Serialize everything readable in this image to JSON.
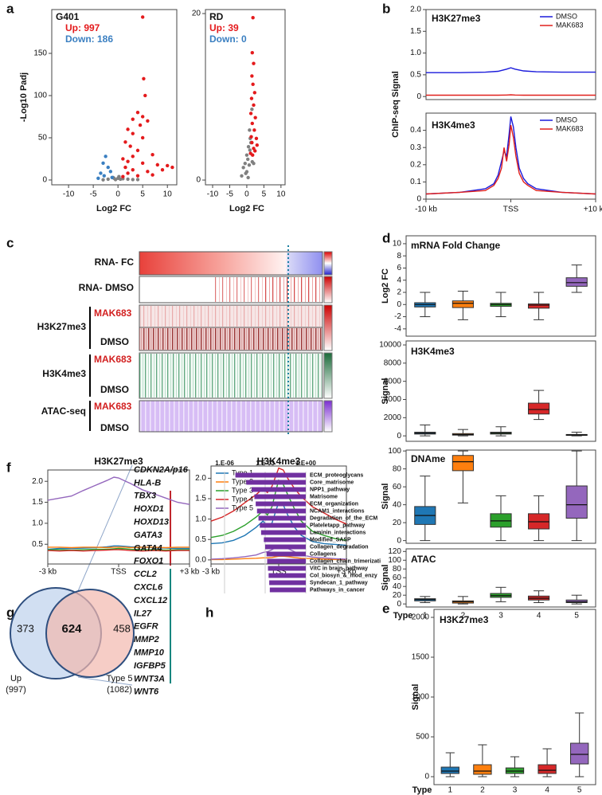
{
  "panel_labels": [
    "a",
    "b",
    "c",
    "d",
    "e",
    "f",
    "g",
    "h"
  ],
  "heatmap": {
    "rows": [
      "RNA- FC",
      "RNA- DMSO"
    ],
    "tracks": [
      {
        "name": "H3K27me3",
        "conditions": [
          "MAK683",
          "DMSO"
        ]
      },
      {
        "name": "H3K4me3",
        "conditions": [
          "MAK683",
          "DMSO"
        ]
      },
      {
        "name": "ATAC-seq",
        "conditions": [
          "MAK683",
          "DMSO"
        ]
      }
    ]
  },
  "chart_data": [
    {
      "type": "scatter",
      "title": "G401",
      "xlabel": "Log2 FC",
      "ylabel": "-Log10 Padj",
      "annotations": [
        {
          "text": "Up: 997",
          "color": "#e41a1c"
        },
        {
          "text": "Down: 186",
          "color": "#3a7fc1"
        }
      ],
      "xlim": [
        -13.4,
        11.9
      ],
      "ylim": [
        -5.7,
        201.9
      ],
      "xticks": [
        -10,
        -5,
        0,
        5,
        10
      ],
      "yticks": [
        0,
        50,
        100,
        150
      ],
      "series": [
        {
          "color": "#808080",
          "x": [
            -1,
            0,
            0.5,
            -0.5,
            1,
            2,
            -2,
            3,
            -3,
            0.2,
            -0.8,
            4
          ],
          "values": [
            3,
            2,
            1,
            0.5,
            1.5,
            1,
            1,
            0.5,
            0.3,
            4,
            2,
            0.5
          ]
        },
        {
          "color": "#3a7fc1",
          "x": [
            -2.5,
            -3,
            -2,
            -1.5,
            -3.5,
            -2.8,
            -1.2,
            -4
          ],
          "values": [
            28,
            20,
            15,
            10,
            8,
            5,
            3,
            2
          ]
        },
        {
          "color": "#e41a1c",
          "x": [
            5,
            5.2,
            5.5,
            4,
            5,
            3,
            6,
            4.5,
            2,
            3,
            5,
            1.5,
            2.5,
            4,
            7,
            3,
            1,
            2,
            5,
            8,
            10,
            1.5,
            3,
            6,
            2,
            9,
            11,
            4,
            1,
            7
          ],
          "values": [
            193,
            120,
            100,
            80,
            75,
            72,
            70,
            65,
            60,
            55,
            50,
            45,
            40,
            35,
            30,
            28,
            25,
            22,
            20,
            18,
            17,
            15,
            12,
            10,
            8,
            12,
            15,
            5,
            4,
            6
          ]
        }
      ]
    },
    {
      "type": "scatter",
      "title": "RD",
      "xlabel": "Log2 FC",
      "annotations": [
        {
          "text": "Up: 39",
          "color": "#e41a1c"
        },
        {
          "text": "Down: 0",
          "color": "#3a7fc1"
        }
      ],
      "xlim": [
        -12.1,
        11.2
      ],
      "ylim": [
        -0.57,
        20.48
      ],
      "xticks": [
        -10,
        -5,
        0,
        5,
        10
      ],
      "yticks": [
        0,
        20
      ],
      "series": [
        {
          "color": "#808080",
          "x": [
            1.5,
            0.8,
            1,
            0.5,
            1.2,
            0,
            0.3,
            -0.5,
            -1,
            0,
            0.7,
            -0.3,
            0.4,
            -1.5,
            1.6,
            2,
            0.9
          ],
          "values": [
            8.5,
            6,
            5,
            4,
            4.5,
            3,
            2.5,
            2,
            1.5,
            1,
            1.8,
            0.8,
            0.3,
            0.5,
            2.2,
            2,
            3.6
          ]
        },
        {
          "color": "#e41a1c",
          "x": [
            1.8,
            1.6,
            2,
            1.5,
            1.8,
            2.3,
            1.4,
            2,
            1.2,
            2.5,
            1.6,
            2.2,
            1.3,
            2.8,
            1.5,
            2,
            1.1,
            3,
            1.7,
            2.4
          ],
          "values": [
            19.5,
            15.3,
            14,
            12.5,
            11.5,
            10.5,
            9.8,
            9,
            8,
            7.5,
            6.8,
            6,
            5.2,
            5,
            4.5,
            3.8,
            3.2,
            4.2,
            3,
            3.5
          ]
        }
      ]
    },
    {
      "type": "line",
      "title": "H3K27me3",
      "ylabel": "ChIP-seq Signal",
      "legend": "upper right",
      "xlim": [
        -10,
        10
      ],
      "ylim": [
        -0.07,
        2.0
      ],
      "yticks": [
        0,
        0.5,
        {
          "value": 1,
          "label": "1.0"
        },
        1.5,
        {
          "value": 2,
          "label": "2.0"
        }
      ],
      "x": [
        -10,
        -6,
        -3,
        -1.5,
        -0.5,
        0,
        0.5,
        1.5,
        3,
        6,
        10
      ],
      "series": [
        {
          "name": "DMSO",
          "color": "#1a1adb",
          "values": [
            0.55,
            0.55,
            0.56,
            0.58,
            0.63,
            0.66,
            0.63,
            0.59,
            0.57,
            0.56,
            0.56
          ]
        },
        {
          "name": "MAK683",
          "color": "#e0201c",
          "values": [
            0.03,
            0.03,
            0.03,
            0.03,
            0.035,
            0.04,
            0.035,
            0.03,
            0.03,
            0.03,
            0.03
          ]
        }
      ]
    },
    {
      "type": "line",
      "title": "H3K4me3",
      "legend": "upper right",
      "xlim": [
        -10,
        10
      ],
      "ylim": [
        0,
        0.5
      ],
      "yticks": [
        0,
        0.1,
        0.2,
        0.3,
        0.4
      ],
      "xticks": [
        {
          "value": -10,
          "label": "-10 kb"
        },
        {
          "value": 0,
          "label": "TSS"
        },
        {
          "value": 10,
          "label": "+10 kb"
        }
      ],
      "x": [
        -10,
        -6,
        -3,
        -2,
        -1.5,
        -1.1,
        -0.8,
        -0.5,
        -0.2,
        0,
        0.3,
        0.6,
        1,
        1.5,
        2,
        3,
        6,
        10
      ],
      "series": [
        {
          "name": "DMSO",
          "color": "#1a1adb",
          "values": [
            0.03,
            0.04,
            0.06,
            0.09,
            0.14,
            0.22,
            0.28,
            0.25,
            0.38,
            0.48,
            0.42,
            0.3,
            0.18,
            0.12,
            0.09,
            0.06,
            0.04,
            0.03
          ]
        },
        {
          "name": "MAK683",
          "color": "#e0201c",
          "values": [
            0.03,
            0.04,
            0.05,
            0.08,
            0.12,
            0.18,
            0.3,
            0.22,
            0.32,
            0.43,
            0.36,
            0.25,
            0.15,
            0.1,
            0.08,
            0.05,
            0.04,
            0.03
          ]
        }
      ]
    },
    {
      "type": "box",
      "title": "mRNA Fold Change",
      "ylabel": "Log2 FC",
      "ylim": [
        -5.2,
        11.3
      ],
      "yticks": [
        -4,
        -2,
        0,
        2,
        4,
        6,
        8,
        10
      ],
      "colors": [
        "#1f77b4",
        "#ff7f0e",
        "#2ca02c",
        "#d62728",
        "#9467bd"
      ],
      "boxes": [
        [
          -2,
          -0.4,
          0,
          0.3,
          2
        ],
        [
          -2.5,
          -0.5,
          0.2,
          0.6,
          2.2
        ],
        [
          -2,
          -0.3,
          0,
          0.2,
          2
        ],
        [
          -2.5,
          -0.6,
          -0.1,
          0.1,
          2
        ],
        [
          2,
          3,
          3.6,
          4.4,
          6.5
        ]
      ]
    },
    {
      "type": "box",
      "title": "H3K4me3",
      "ylabel": "Signal",
      "ylim": [
        -600,
        10440
      ],
      "yticks": [
        0,
        2000,
        4000,
        6000,
        8000,
        10000
      ],
      "colors": [
        "#1f77b4",
        "#ff7f0e",
        "#2ca02c",
        "#d62728",
        "#9467bd"
      ],
      "boxes": [
        [
          0,
          200,
          300,
          400,
          1200
        ],
        [
          0,
          80,
          150,
          250,
          700
        ],
        [
          0,
          200,
          300,
          400,
          1000
        ],
        [
          1800,
          2400,
          2900,
          3600,
          5000
        ],
        [
          0,
          50,
          100,
          150,
          400
        ]
      ]
    },
    {
      "type": "box",
      "title": "DNAme",
      "ylabel": "Signal",
      "ylim": [
        -3,
        101
      ],
      "yticks": [
        0,
        20,
        40,
        60,
        80,
        100
      ],
      "colors": [
        "#1f77b4",
        "#ff7f0e",
        "#2ca02c",
        "#d62728",
        "#9467bd"
      ],
      "boxes": [
        [
          0,
          18,
          28,
          38,
          72
        ],
        [
          42,
          78,
          88,
          95,
          100
        ],
        [
          0,
          15,
          22,
          30,
          50
        ],
        [
          0,
          13,
          21,
          30,
          50
        ],
        [
          0,
          25,
          40,
          61,
          100
        ]
      ]
    },
    {
      "type": "box",
      "title": "ATAC",
      "ylabel": "Signal",
      "xlabel": "Type",
      "ylim": [
        -7,
        126
      ],
      "yticks": [
        0,
        20,
        40,
        60,
        80,
        100,
        120
      ],
      "categories": [
        "1",
        "2",
        "3",
        "4",
        "5"
      ],
      "colors": [
        "#1f77b4",
        "#ff7f0e",
        "#2ca02c",
        "#d62728",
        "#9467bd"
      ],
      "boxes": [
        [
          3,
          7,
          10,
          12,
          17
        ],
        [
          0,
          2,
          5,
          7,
          17
        ],
        [
          5,
          15,
          19,
          24,
          38
        ],
        [
          3,
          9,
          13,
          18,
          30
        ],
        [
          0,
          3,
          5,
          9,
          20
        ]
      ]
    },
    {
      "type": "box",
      "title": "H3K27me3",
      "ylabel": "Signal",
      "xlabel": "Type",
      "ylim": [
        -100,
        2100
      ],
      "yticks": [
        0,
        500,
        1000,
        1500,
        2000
      ],
      "categories": [
        "1",
        "2",
        "3",
        "4",
        "5"
      ],
      "colors": [
        "#1f77b4",
        "#ff7f0e",
        "#2ca02c",
        "#d62728",
        "#9467bd"
      ],
      "boxes": [
        [
          0,
          40,
          70,
          120,
          300
        ],
        [
          0,
          30,
          70,
          150,
          400
        ],
        [
          0,
          40,
          70,
          110,
          250
        ],
        [
          0,
          40,
          80,
          150,
          350
        ],
        [
          0,
          160,
          280,
          420,
          800
        ]
      ]
    },
    {
      "type": "line",
      "title": "H3K27me3",
      "xlim": [
        -3,
        3
      ],
      "ylim": [
        0.03,
        2.27
      ],
      "yticks": [
        0.5,
        {
          "value": 1,
          "label": "1.0"
        },
        1.5,
        {
          "value": 2,
          "label": "2.0"
        }
      ],
      "xticks": [
        {
          "value": -3,
          "label": "-3 kb"
        },
        {
          "value": 0,
          "label": "TSS"
        },
        {
          "value": 3,
          "label": "+3 kb"
        }
      ],
      "x": [
        -3,
        -2.5,
        -2,
        -1.5,
        -1,
        -0.5,
        -0.2,
        0,
        0.3,
        0.5,
        1,
        1.5,
        2,
        2.5,
        3
      ],
      "series": [
        {
          "color": "#9467bd",
          "values": [
            1.55,
            1.6,
            1.65,
            1.78,
            1.9,
            2.02,
            2.1,
            2.08,
            2.0,
            1.95,
            1.8,
            1.7,
            1.6,
            1.5,
            1.45
          ]
        },
        {
          "color": "#1f77b4",
          "values": [
            0.38,
            0.4,
            0.4,
            0.41,
            0.42,
            0.44,
            0.46,
            0.46,
            0.45,
            0.44,
            0.43,
            0.42,
            0.41,
            0.4,
            0.4
          ]
        },
        {
          "color": "#ff7f0e",
          "values": [
            0.43,
            0.43,
            0.42,
            0.43,
            0.43,
            0.42,
            0.43,
            0.43,
            0.43,
            0.42,
            0.43,
            0.43,
            0.42,
            0.43,
            0.43
          ]
        },
        {
          "color": "#2ca02c",
          "values": [
            0.37,
            0.37,
            0.36,
            0.37,
            0.38,
            0.38,
            0.39,
            0.4,
            0.39,
            0.38,
            0.37,
            0.37,
            0.36,
            0.37,
            0.37
          ]
        },
        {
          "color": "#d62728",
          "values": [
            0.35,
            0.34,
            0.35,
            0.34,
            0.35,
            0.36,
            0.37,
            0.37,
            0.36,
            0.35,
            0.34,
            0.35,
            0.34,
            0.35,
            0.35
          ]
        }
      ]
    },
    {
      "type": "line",
      "title": "H3K4me3",
      "legend": "upper left",
      "xlim": [
        -3,
        3
      ],
      "ylim": [
        -0.1,
        2.3
      ],
      "yticks": [
        {
          "value": 0,
          "label": "0.0"
        },
        0.5,
        {
          "value": 1,
          "label": "1.0"
        },
        1.5,
        {
          "value": 2,
          "label": "2.0"
        }
      ],
      "xticks": [
        {
          "value": -3,
          "label": "-3 kb"
        },
        {
          "value": 0,
          "label": "TSS"
        },
        {
          "value": 3,
          "label": "+3 kb"
        }
      ],
      "x": [
        -3,
        -2.5,
        -2,
        -1.5,
        -1,
        -0.7,
        -0.5,
        -0.3,
        -0.1,
        0,
        0.2,
        0.4,
        0.7,
        1,
        1.5,
        2,
        2.5,
        3
      ],
      "series": [
        {
          "name": "Type 1",
          "color": "#1f77b4",
          "values": [
            0.4,
            0.42,
            0.48,
            0.6,
            0.8,
            0.95,
            0.85,
            0.9,
            1.25,
            1.4,
            1.35,
            1.1,
            0.8,
            0.6,
            0.45,
            0.4,
            0.38,
            0.36
          ]
        },
        {
          "name": "Type 2",
          "color": "#ff7f0e",
          "values": [
            0.01,
            0.01,
            0.02,
            0.03,
            0.04,
            0.05,
            0.05,
            0.06,
            0.08,
            0.09,
            0.09,
            0.08,
            0.06,
            0.04,
            0.03,
            0.02,
            0.01,
            0.01
          ]
        },
        {
          "name": "Type 3",
          "color": "#2ca02c",
          "values": [
            0.55,
            0.6,
            0.7,
            0.85,
            1.05,
            1.2,
            1.1,
            1.3,
            1.75,
            1.95,
            1.85,
            1.6,
            1.25,
            0.95,
            0.7,
            0.6,
            0.52,
            0.48
          ]
        },
        {
          "name": "Type 4",
          "color": "#d62728",
          "values": [
            0.95,
            1.05,
            1.2,
            1.4,
            1.6,
            1.75,
            1.65,
            1.8,
            2.1,
            2.25,
            2.2,
            2.0,
            1.75,
            1.55,
            1.3,
            1.15,
            1.0,
            0.88
          ]
        },
        {
          "name": "Type 5",
          "color": "#9467bd",
          "values": [
            0.02,
            0.03,
            0.05,
            0.08,
            0.12,
            0.18,
            0.2,
            0.25,
            0.32,
            0.35,
            0.33,
            0.28,
            0.2,
            0.12,
            0.07,
            0.05,
            0.03,
            0.02
          ]
        }
      ]
    },
    {
      "type": "venn",
      "regions": [
        373,
        624,
        458
      ],
      "sets": [
        [
          "Up",
          "(997)"
        ],
        [
          "Type 5",
          "(1082)"
        ]
      ],
      "genes": [
        "CDKN2A/p16",
        "HLA-B",
        "TBX3",
        "HOXD1",
        "HOXD13",
        "GATA3",
        "GATA4",
        "FOXO1",
        "CCL2",
        "CXCL6",
        "CXCL12",
        "IL27",
        "EGFR",
        "MMP2",
        "MMP10",
        "IGFBP5",
        "WNT3A",
        "WNT6"
      ]
    },
    {
      "type": "hbar",
      "log_x": true,
      "grid": true,
      "color": "#7030a0",
      "xlim": [
        1e-07,
        1
      ],
      "xticks": [
        {
          "value": 1e-06,
          "label": "1.E-06"
        },
        {
          "value": 0.001,
          "label": "1.E-03"
        },
        {
          "value": 1,
          "label": "1.E+00"
        }
      ],
      "categories": [
        "ECM_proteoglycans",
        "Core_matrisome",
        "NPP1_pathway",
        "Matrisome",
        "ECM_organization",
        "NCAM1_interactions",
        "Degradation_of_the_ECM",
        "Plateletapp_pathway",
        "Laminin_interactions",
        "Modified_SASP",
        "Collagen_degradation",
        "Collagens",
        "Collagen_chain_trimerizati",
        "VitC in brain_pathway",
        "Col_biosyn_&_mod_enzy",
        "Syndecan_1_pathway",
        "Pathways_in_cancer"
      ],
      "values": [
        6.3e-06,
        4e-05,
        0.0001,
        0.00016,
        0.0002,
        0.00025,
        0.00032,
        0.0004,
        0.0005,
        0.0008,
        0.001,
        0.00126,
        0.0014,
        0.0016,
        0.0018,
        0.002,
        0.0022
      ]
    }
  ]
}
